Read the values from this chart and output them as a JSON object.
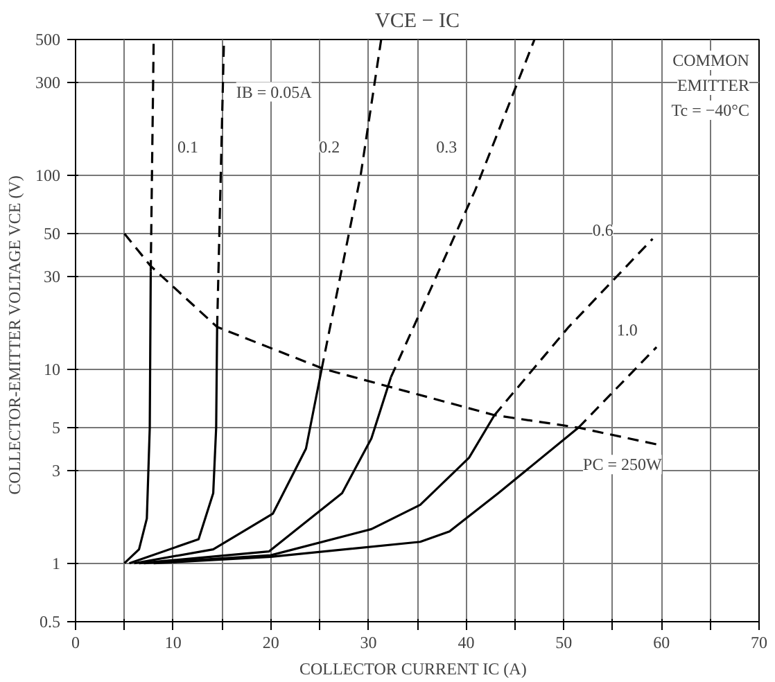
{
  "chart_data": {
    "type": "line",
    "title": "VCE − IC",
    "xlabel": "COLLECTOR CURRENT  IC  (A)",
    "ylabel": "COLLECTOR-EMITTER VOLTAGE  VCE  (V)",
    "log": "y",
    "grid": true,
    "marker": "none",
    "xlim": [
      0,
      70
    ],
    "ylim": [
      0.5,
      500
    ],
    "xticks": [
      0,
      {
        "value": 5,
        "label": null
      },
      10,
      {
        "value": 15,
        "label": null
      },
      20,
      {
        "value": 25,
        "label": null
      },
      30,
      {
        "value": 35,
        "label": null
      },
      40,
      {
        "value": 45,
        "label": null
      },
      50,
      {
        "value": 55,
        "label": null
      },
      60,
      {
        "value": 65,
        "label": null
      },
      70
    ],
    "yticks": [
      0.5,
      1,
      3,
      5,
      10,
      30,
      50,
      100,
      300,
      500
    ],
    "series": [
      {
        "color": "#000000",
        "line_style": "solid",
        "x": [
          5,
          6.5,
          7.3,
          7.6,
          7.7
        ],
        "values": [
          1,
          1.18,
          1.7,
          5,
          32
        ]
      },
      {
        "color": "#000000",
        "line_style": "dashed",
        "x": [
          7.7,
          8.0
        ],
        "values": [
          32,
          500
        ]
      },
      {
        "color": "#000000",
        "line_style": "solid",
        "x": [
          5.5,
          12.6,
          14.1,
          14.4,
          14.5
        ],
        "values": [
          1,
          1.33,
          2.3,
          5,
          16.5
        ]
      },
      {
        "color": "#000000",
        "line_style": "dashed",
        "x": [
          14.5,
          15.2
        ],
        "values": [
          16.5,
          500
        ]
      },
      {
        "color": "#000000",
        "line_style": "solid",
        "x": [
          6,
          14.1,
          20.2,
          23.6,
          25.2
        ],
        "values": [
          1,
          1.18,
          1.8,
          3.9,
          10
        ]
      },
      {
        "color": "#000000",
        "line_style": "dashed",
        "x": [
          25.2,
          29.2,
          31.3
        ],
        "values": [
          10,
          100,
          500
        ]
      },
      {
        "color": "#000000",
        "line_style": "solid",
        "x": [
          6.5,
          19.8,
          27.3,
          30.3,
          32.3
        ],
        "values": [
          1,
          1.15,
          2.3,
          4.4,
          9.1
        ]
      },
      {
        "color": "#000000",
        "line_style": "dashed",
        "x": [
          32.3,
          40.9,
          47
        ],
        "values": [
          9.1,
          83,
          500
        ]
      },
      {
        "color": "#000000",
        "line_style": "solid",
        "x": [
          7,
          20,
          30.3,
          35.3,
          40.3,
          42.9
        ],
        "values": [
          1,
          1.1,
          1.5,
          2,
          3.5,
          5.8
        ]
      },
      {
        "color": "#000000",
        "line_style": "dashed",
        "x": [
          42.9,
          50.5,
          59.1
        ],
        "values": [
          5.8,
          16.5,
          47
        ]
      },
      {
        "color": "#000000",
        "line_style": "solid",
        "x": [
          8,
          20,
          35.3,
          38.3,
          43.3,
          51.5
        ],
        "values": [
          1,
          1.08,
          1.29,
          1.46,
          2.3,
          5
        ]
      },
      {
        "color": "#000000",
        "line_style": "dashed",
        "x": [
          51.5,
          59.5
        ],
        "values": [
          5,
          13
        ]
      },
      {
        "color": "#000000",
        "line_style": "dashed",
        "x": [
          5,
          7.7,
          14.5,
          25.5,
          42.9,
          51.5,
          59.5
        ],
        "values": [
          50,
          34,
          16.5,
          10,
          5.8,
          5,
          4.1
        ]
      }
    ],
    "annotations": [
      "IB = 0.05A",
      {
        "text": "0.1",
        "x": 11.5,
        "y": 140
      },
      {
        "text": "0.2",
        "x": 26,
        "y": 140
      },
      {
        "text": "0.3",
        "x": 38,
        "y": 140
      },
      {
        "text": "0.6",
        "x": 54,
        "y": 52
      },
      {
        "text": "1.0",
        "x": 56.5,
        "y": 16
      },
      "PC = 250W",
      "COMMON",
      "EMITTER",
      "Tc = −40°C"
    ]
  }
}
